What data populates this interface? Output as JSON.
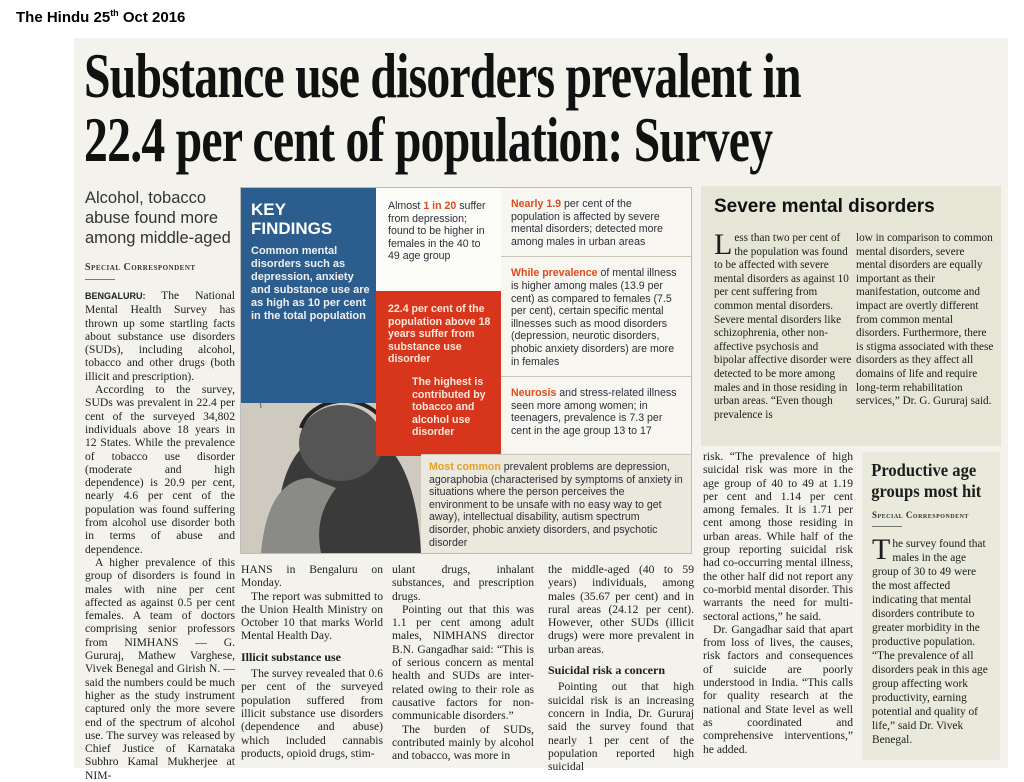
{
  "caption": {
    "text": "The Hindu 25",
    "sup": "th",
    "rest": " Oct 2016"
  },
  "headline": {
    "line1": "Substance use disorders prevalent in",
    "line2": "22.4 per cent of population: Survey"
  },
  "main": {
    "subheadline": "Alcohol, tobacco abuse found more among middle-aged",
    "byline": "Special Correspondent",
    "dateline": "BENGALURU:",
    "col1": [
      "The National Mental Health Survey has thrown up some startling facts about substance use disorders (SUDs), including alcohol, tobacco and other drugs (both illicit and prescription).",
      "According to the survey, SUDs was prevalent in 22.4 per cent of the surveyed 34,802 individuals above 18 years in 12 States. While the prevalence of tobacco use disorder (moderate and high dependence) is 20.9 per cent, nearly 4.6 per cent of the population was found suffering from alcohol use disorder both in terms of abuse and dependence.",
      "A higher prevalence of this group of disorders is found in males with nine per cent affected as against 0.5 per cent females. A team of doctors comprising senior professors from NIMHANS — G. Gururaj, Mathew Varghese, Vivek Benegal and Girish N. — said the numbers could be much higher as the study instrument captured only the more severe end of the spectrum of alcohol use. The survey was released by Chief Justice of Karnataka Subhro Kamal Mukherjee at NIM-"
    ],
    "col2": [
      "HANS in Bengaluru on Monday.",
      "The report was submitted to the Union Health Ministry on October 10 that marks World Mental Health Day."
    ],
    "subhead_illicit": "Illicit substance use",
    "col2b": [
      "The survey revealed that 0.6 per cent of the surveyed population suffered from illicit substance use disorders (dependence and abuse) which included cannabis products, opioid drugs, stim-"
    ],
    "col3": [
      "ulant drugs, inhalant substances, and prescription drugs.",
      "Pointing out that this was 1.1 per cent among adult males, NIMHANS director B.N. Gangadhar said: “This is of serious concern as mental health and SUDs are inter-related owing to their role as causative factors for non-communicable disorders.”",
      "The burden of SUDs, contributed mainly by alcohol and tobacco, was more in"
    ],
    "col4": [
      "the middle-aged (40 to 59 years) individuals, among males (35.67 per cent) and in rural areas (24.12 per cent). However, other SUDs (illicit drugs) were more prevalent in urban areas."
    ],
    "subhead_suicide": "Suicidal risk a concern",
    "col4b": [
      "Pointing out that high suicidal risk is an increasing concern in India, Dr. Gururaj said the survey found that nearly 1 per cent of the population reported high suicidal"
    ],
    "col5": [
      "risk. “The prevalence of high suicidal risk was more in the age group of 40 to 49 at 1.19 per cent and 1.14 per cent among females. It is 1.71 per cent among those residing in urban areas. While half of the group reporting suicidal risk had co-occurring mental illness, the other half did not report any co-morbid mental disorder. This warrants the need for multi-sectoral actions,” he said.",
      "Dr. Gangadhar said that apart from loss of lives, the causes, risk factors and consequences of suicide are poorly understood in India. “This calls for quality research at the national and State level as well as coordinated and comprehensive interventions,” he added."
    ]
  },
  "infographic": {
    "title_line1": "KEY",
    "title_line2": "FINDINGS",
    "blue_text": "Common mental disorders such as depression, anxiety and substance use are as high as 10 per cent in the total population",
    "white_pre": "Almost ",
    "white_accent": "1 in 20",
    "white_text": " suffer from depression; found to be higher in females in the 40 to 49 age group",
    "red_text1": "22.4 per cent of the population above 18 years suffer from substance use disorder",
    "red_text2": "The highest is contributed by tobacco and alcohol use disorder",
    "rp1_accent": "Nearly 1.9",
    "rp1_text": " per cent of the population is affected by severe mental disorders; detected more among males in urban areas",
    "rp2_accent": "While prevalence",
    "rp2_text": " of mental illness is higher among males (13.9 per cent) as compared to females (7.5 per cent), certain specific mental illnesses such as mood disorders (depression, neurotic disorders, phobic anxiety disorders) are more in females",
    "rp3_accent": "Neurosis",
    "rp3_text": " and stress-related illness seen more among women; in teenagers, prevalence is 7.3 per cent in the age group 13 to 17",
    "bottom_accent": "Most common",
    "bottom_text": " prevalent problems are depression, agoraphobia (characterised by symptoms of anxiety in situations where the person perceives the environment to be unsafe with no easy way to get away), intellectual disability, autism spectrum disorder, phobic anxiety disorders, and psychotic disorder"
  },
  "severe_box": {
    "title": "Severe mental disorders",
    "dropcap": "L",
    "col1": "ess than two per cent of the population was found to be affected with severe mental disorders as against 10 per cent suffering from common mental disorders. Severe mental disorders like schizophrenia, other non-affective psychosis and bipolar affective disorder were detected to be more among males and in those residing in urban areas. “Even though prevalence is",
    "col2": "low in comparison to common mental disorders, severe mental disorders are equally important as their manifestation, outcome and impact are overtly different from common mental disorders. Furthermore, there is stigma associated with these disorders as they affect all domains of life and require long-term rehabilitation services,” Dr. G. Gururaj said."
  },
  "productive_box": {
    "title_line1": "Productive age",
    "title_line2": "groups most hit",
    "byline": "Special Correspondent",
    "dropcap": "T",
    "text": "he survey found that males in the age group of 30 to 49 were the most affected indicating that mental disorders contribute to greater morbidity in the productive population. “The prevalence of all disorders peak in this age group affecting work productivity, earning potential and quality of life,” said Dr. Vivek Benegal."
  },
  "colors": {
    "blue": "#2b5d8f",
    "red": "#d8361c",
    "accent": "#e04a1c"
  }
}
